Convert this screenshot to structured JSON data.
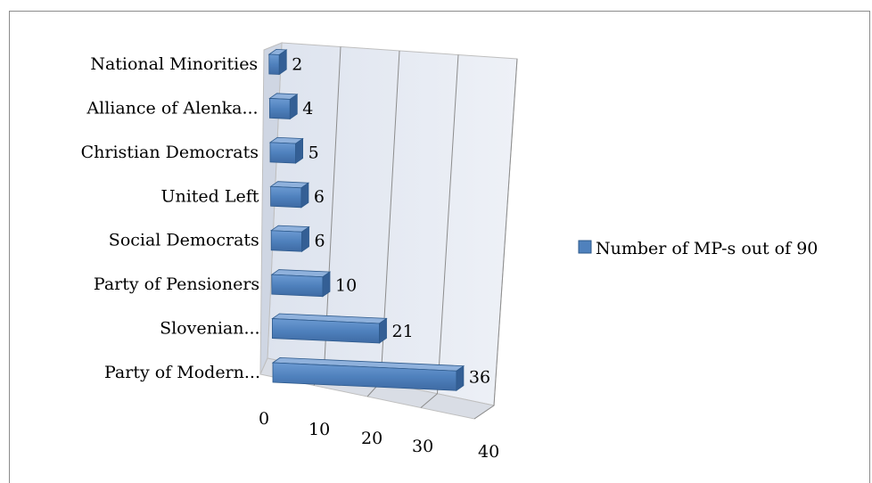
{
  "chart_data": {
    "type": "bar",
    "orientation": "horizontal",
    "style": "3d",
    "categories": [
      "Party of Modern...",
      "Slovenian...",
      "Party of Pensioners",
      "Social Democrats",
      "United Left",
      "Christian Democrats",
      "Alliance of Alenka...",
      "National Minorities"
    ],
    "series": [
      {
        "name": "Number of MP-s out of 90",
        "values": [
          36,
          21,
          10,
          6,
          6,
          5,
          4,
          2
        ],
        "color": "#4f81bd"
      }
    ],
    "xlim": [
      0,
      40
    ],
    "xticks": [
      0,
      10,
      20,
      30,
      40
    ],
    "grid": true,
    "legend": "right",
    "title": "",
    "xlabel": "",
    "ylabel": ""
  }
}
